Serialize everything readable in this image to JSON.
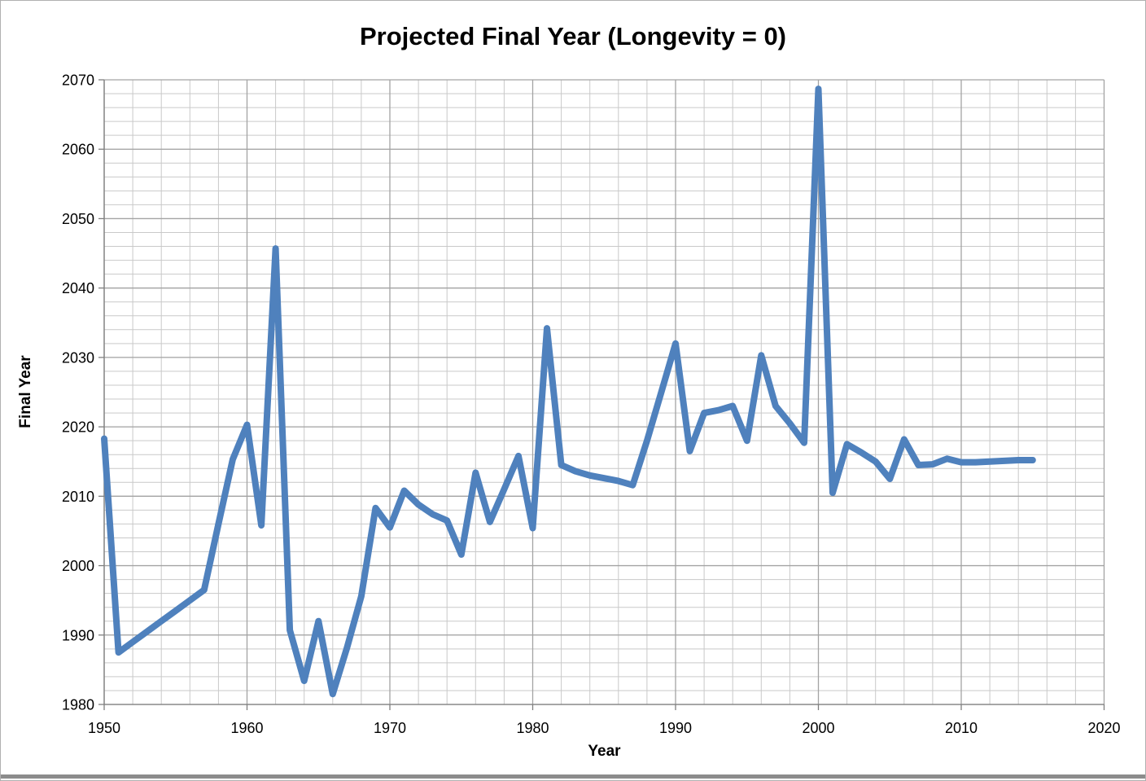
{
  "chart_data": {
    "type": "line",
    "title": "Projected Final Year (Longevity = 0)",
    "xlabel": "Year",
    "ylabel": "Final Year",
    "xlim": [
      1950,
      2020
    ],
    "ylim": [
      1980,
      2070
    ],
    "x_major_ticks": [
      1950,
      1960,
      1970,
      1980,
      1990,
      2000,
      2010,
      2020
    ],
    "y_major_ticks": [
      1980,
      1990,
      2000,
      2010,
      2020,
      2030,
      2040,
      2050,
      2060,
      2070
    ],
    "x_minor_step": 2,
    "y_minor_step": 2,
    "grid": "major-and-minor-both-axes",
    "legend": "none",
    "series": [
      {
        "name": "Projected Final Year",
        "x": [
          1950,
          1951,
          1952,
          1953,
          1954,
          1955,
          1956,
          1957,
          1958,
          1959,
          1960,
          1961,
          1962,
          1963,
          1964,
          1965,
          1966,
          1967,
          1968,
          1969,
          1970,
          1971,
          1972,
          1973,
          1974,
          1975,
          1976,
          1977,
          1978,
          1979,
          1980,
          1981,
          1982,
          1983,
          1984,
          1985,
          1986,
          1987,
          1988,
          1989,
          1990,
          1991,
          1992,
          1993,
          1994,
          1995,
          1996,
          1997,
          1998,
          1999,
          2000,
          2001,
          2002,
          2003,
          2004,
          2005,
          2006,
          2007,
          2008,
          2009,
          2010,
          2011,
          2012,
          2013,
          2014,
          2015
        ],
        "values": [
          2018.3,
          1987.5,
          1989.0,
          1990.5,
          1992.0,
          1993.5,
          1995.0,
          1996.5,
          2006.0,
          2015.3,
          2020.3,
          2005.8,
          2045.7,
          1990.7,
          1983.4,
          1992.0,
          1981.5,
          1988.2,
          1995.6,
          2008.3,
          2005.5,
          2010.8,
          2008.8,
          2007.4,
          2006.5,
          2001.6,
          2013.4,
          2006.3,
          2011.0,
          2015.8,
          2005.4,
          2034.2,
          2014.5,
          2013.6,
          2013.0,
          2012.6,
          2012.2,
          2011.6,
          2018.0,
          2025.0,
          2032.0,
          2016.5,
          2022.0,
          2022.4,
          2023.0,
          2018.0,
          2030.3,
          2023.0,
          2020.5,
          2017.7,
          2068.7,
          2010.5,
          2017.5,
          2016.3,
          2015.0,
          2012.5,
          2018.2,
          2014.5,
          2014.6,
          2015.4,
          2014.9,
          2014.9,
          2015.0,
          2015.1,
          2015.2,
          2015.2
        ]
      }
    ],
    "colors": {
      "line": "#4F81BD",
      "grid_minor": "#C9C9C9",
      "grid_major": "#A3A3A3",
      "axis": "#7F7F7F",
      "text": "#000000"
    },
    "line_width": 8
  }
}
